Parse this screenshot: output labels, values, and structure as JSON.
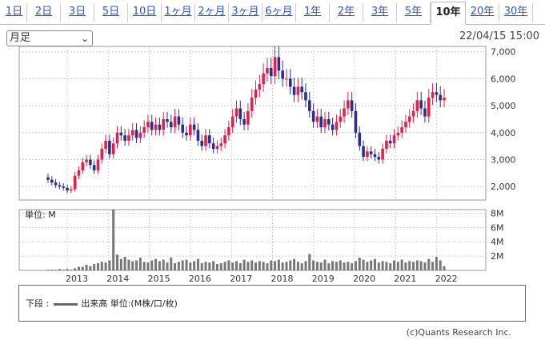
{
  "tabs": [
    "1日",
    "2日",
    "3日",
    "5日",
    "10日",
    "1ヶ月",
    "2ヶ月",
    "3ヶ月",
    "6ヶ月",
    "1年",
    "2年",
    "3年",
    "5年",
    "10年",
    "20年",
    "30年"
  ],
  "active_tab": "10年",
  "period_select": {
    "value": "月足"
  },
  "timestamp": "22/04/15 15:00",
  "volume_label": "単位: M",
  "legend": {
    "prefix": "下段 :",
    "text": "出来高 単位:(M株/口/枚)"
  },
  "copyright": "(c)Quants Research Inc.",
  "colors": {
    "up": "#e0204f",
    "down": "#2b2e8c",
    "volume": "#777777",
    "grid": "#cfcfcf"
  },
  "chart_data": [
    {
      "type": "candlestick",
      "x_labels": [
        "2013",
        "2014",
        "2015",
        "2016",
        "2017",
        "2018",
        "2019",
        "2020",
        "2021",
        "2022"
      ],
      "y_ticks": [
        "2,000",
        "3,000",
        "4,000",
        "5,000",
        "6,000",
        "7,000"
      ],
      "ylim": [
        1500,
        7200
      ],
      "closes": [
        2250,
        2150,
        2050,
        2000,
        1950,
        1850,
        1900,
        2400,
        2600,
        2900,
        3000,
        2800,
        2600,
        3000,
        3400,
        3700,
        3200,
        3600,
        4000,
        3900,
        3700,
        3900,
        4100,
        3800,
        4000,
        4200,
        4400,
        4100,
        4300,
        4100,
        4500,
        4400,
        4200,
        4600,
        4300,
        4000,
        3900,
        4300,
        4100,
        3700,
        3500,
        3900,
        3600,
        3400,
        3500,
        3600,
        3900,
        4200,
        4600,
        4900,
        4500,
        4300,
        4800,
        5300,
        5600,
        5800,
        6200,
        6400,
        6100,
        6800,
        6300,
        6000,
        6000,
        5700,
        5400,
        5700,
        5500,
        5200,
        4800,
        4400,
        4600,
        4200,
        4500,
        4300,
        4100,
        4400,
        4600,
        4900,
        5200,
        4800,
        4000,
        3500,
        3100,
        3300,
        3200,
        3100,
        3000,
        3400,
        3700,
        3600,
        3900,
        4000,
        4200,
        4400,
        4600,
        4800,
        5200,
        4900,
        4600,
        5300,
        5500,
        5400,
        5200,
        5300
      ],
      "ylabel": ""
    },
    {
      "type": "bar",
      "title": "単位: M",
      "y_ticks": [
        "2M",
        "4M",
        "6M",
        "8M"
      ],
      "ylim": [
        0,
        8.5
      ],
      "values": [
        0.1,
        0.1,
        0.1,
        0.2,
        0.1,
        0.2,
        0.1,
        0.3,
        0.5,
        0.5,
        0.8,
        0.6,
        0.9,
        1.0,
        1.2,
        1.1,
        1.4,
        8.5,
        2.2,
        1.6,
        1.9,
        1.5,
        1.3,
        1.4,
        1.8,
        1.2,
        1.1,
        1.4,
        1.6,
        1.3,
        1.5,
        1.1,
        1.8,
        1.0,
        1.2,
        1.4,
        1.5,
        1.1,
        1.3,
        1.6,
        1.0,
        1.2,
        1.1,
        1.3,
        0.9,
        1.0,
        1.2,
        1.4,
        1.1,
        1.3,
        1.0,
        1.5,
        1.2,
        1.4,
        1.1,
        1.3,
        1.2,
        1.0,
        1.4,
        1.3,
        1.5,
        1.1,
        1.2,
        1.4,
        1.6,
        1.2,
        1.0,
        1.3,
        2.3,
        1.4,
        1.2,
        1.1,
        1.5,
        1.0,
        1.3,
        1.2,
        1.4,
        1.1,
        1.2,
        1.0,
        1.3,
        1.8,
        1.5,
        1.2,
        1.4,
        1.6,
        1.1,
        1.3,
        1.2,
        1.0,
        1.4,
        1.2,
        1.5,
        1.1,
        1.3,
        1.2,
        1.4,
        1.3,
        1.1,
        1.6,
        1.2,
        1.9,
        1.4,
        0.6
      ]
    }
  ]
}
